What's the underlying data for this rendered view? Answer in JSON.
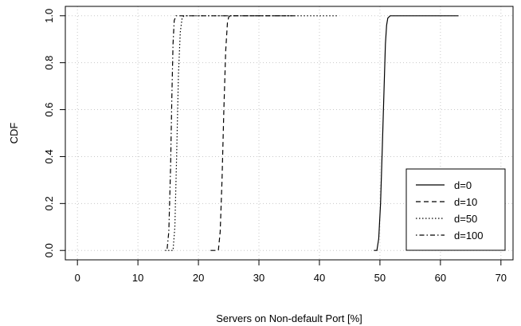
{
  "chart_data": {
    "type": "line",
    "title": "",
    "xlabel": "Servers on Non-default Port [%]",
    "ylabel": "CDF",
    "xlim": [
      -2,
      72
    ],
    "ylim": [
      -0.04,
      1.04
    ],
    "x_ticks": [
      0,
      10,
      20,
      30,
      40,
      50,
      60,
      70
    ],
    "x_tick_labels": [
      "0",
      "10",
      "20",
      "30",
      "40",
      "50",
      "60",
      "70"
    ],
    "y_ticks": [
      0.0,
      0.2,
      0.4,
      0.6,
      0.8,
      1.0
    ],
    "y_tick_labels": [
      "0.0",
      "0.2",
      "0.4",
      "0.6",
      "0.8",
      "1.0"
    ],
    "grid": true,
    "legend_position": "bottom-right",
    "series": [
      {
        "name": "d=0",
        "dash": "solid",
        "x": [
          49.0,
          49.5,
          49.8,
          50.1,
          50.4,
          50.7,
          50.9,
          51.1,
          51.3,
          51.7,
          52.5,
          63.0
        ],
        "y": [
          0.0,
          0.0,
          0.05,
          0.2,
          0.45,
          0.7,
          0.88,
          0.96,
          0.99,
          1.0,
          1.0,
          1.0
        ]
      },
      {
        "name": "d=10",
        "dash": "dashed",
        "x": [
          22.0,
          23.3,
          23.6,
          23.9,
          24.2,
          24.5,
          24.8,
          25.0,
          25.3,
          36.0
        ],
        "y": [
          0.0,
          0.0,
          0.08,
          0.3,
          0.6,
          0.85,
          0.97,
          0.995,
          1.0,
          1.0
        ]
      },
      {
        "name": "d=50",
        "dash": "dotted",
        "x": [
          15.0,
          15.8,
          16.1,
          16.4,
          16.7,
          17.0,
          17.3,
          17.6,
          43.0
        ],
        "y": [
          0.0,
          0.0,
          0.1,
          0.4,
          0.75,
          0.93,
          0.99,
          1.0,
          1.0
        ]
      },
      {
        "name": "d=100",
        "dash": "dotdash",
        "x": [
          14.5,
          14.8,
          15.1,
          15.4,
          15.6,
          15.8,
          16.0,
          16.3,
          35.0
        ],
        "y": [
          0.0,
          0.0,
          0.08,
          0.35,
          0.65,
          0.88,
          0.98,
          1.0,
          1.0
        ]
      }
    ]
  }
}
